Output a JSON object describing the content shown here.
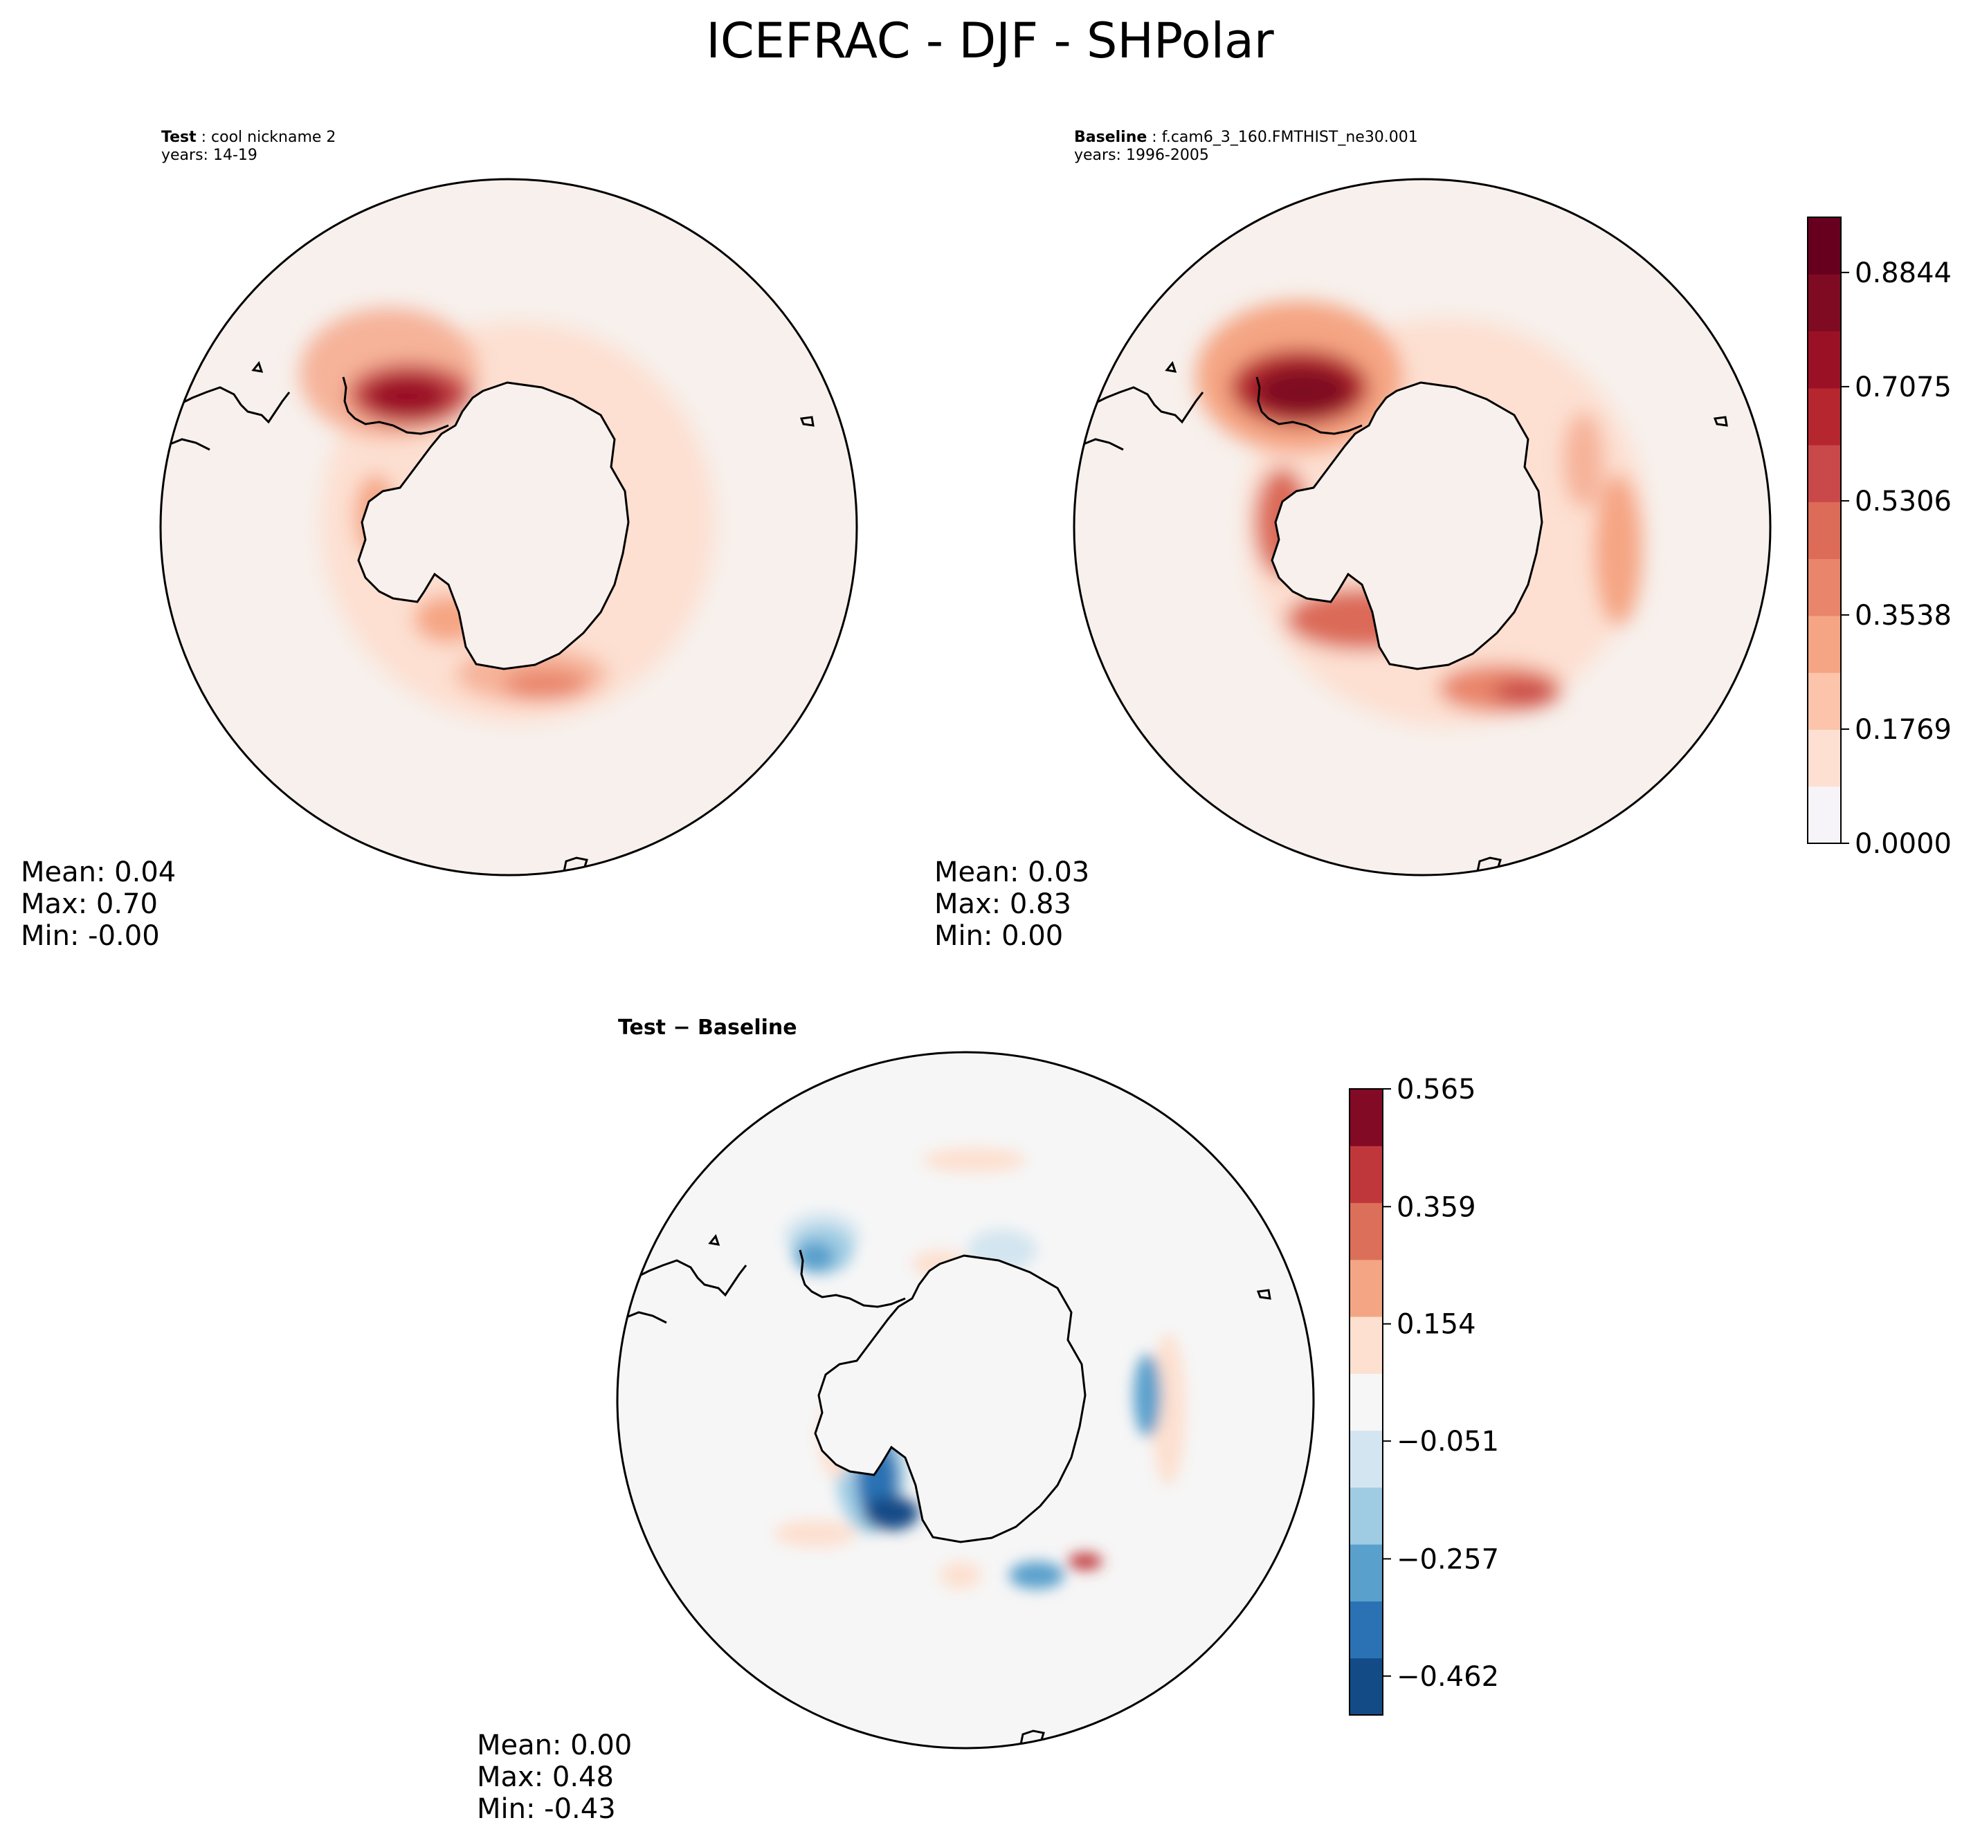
{
  "figure": {
    "title": "ICEFRAC - DJF - SHPolar"
  },
  "panels": {
    "test": {
      "label": "Test",
      "case": "cool nickname 2",
      "years": "years: 14-19",
      "stats": {
        "mean": "Mean:  0.04",
        "max": "Max:  0.70",
        "min": "Min: -0.00"
      }
    },
    "baseline": {
      "label": "Baseline",
      "case": "f.cam6_3_160.FMTHIST_ne30.001",
      "years": "years: 1996-2005",
      "stats": {
        "mean": "Mean:  0.03",
        "max": "Max:  0.83",
        "min": "Min:  0.00"
      }
    },
    "diff": {
      "title": "Test − Baseline",
      "stats": {
        "mean": "Mean:  0.00",
        "max": "Max:  0.48",
        "min": "Min: -0.43"
      }
    }
  },
  "colorbars": {
    "main": {
      "ticks": [
        "0.0000",
        "0.1769",
        "0.3538",
        "0.5306",
        "0.7075",
        "0.8844"
      ],
      "tick_values": [
        0.0,
        0.1769,
        0.3538,
        0.5306,
        0.7075,
        0.8844
      ],
      "range": [
        0.0,
        0.97
      ],
      "colors": [
        "#f7f4f9",
        "#fde0d2",
        "#fbc4ab",
        "#f5a583",
        "#e9856a",
        "#dc6b58",
        "#c9484a",
        "#b5262f",
        "#9a1126",
        "#7f0b22",
        "#67001f"
      ]
    },
    "diff": {
      "ticks": [
        "0.565",
        "0.359",
        "0.154",
        "−0.051",
        "−0.257",
        "−0.462"
      ],
      "tick_values": [
        0.565,
        0.359,
        0.154,
        -0.051,
        -0.257,
        -0.462
      ],
      "range": [
        -0.53,
        0.565
      ],
      "colors": [
        "#134b87",
        "#2a72b3",
        "#5aa0cc",
        "#9fcce3",
        "#d3e5f0",
        "#f6f6f6",
        "#fde0d0",
        "#f4a684",
        "#dc6f59",
        "#c0373b",
        "#820a24"
      ]
    }
  },
  "chart_data": [
    {
      "type": "heatmap",
      "title": "Test",
      "variable": "ICEFRAC",
      "season": "DJF",
      "region": "SHPolar",
      "mean": 0.04,
      "max": 0.7,
      "min": -0.0
    },
    {
      "type": "heatmap",
      "title": "Baseline",
      "variable": "ICEFRAC",
      "season": "DJF",
      "region": "SHPolar",
      "mean": 0.03,
      "max": 0.83,
      "min": 0.0
    },
    {
      "type": "heatmap",
      "title": "Test − Baseline",
      "variable": "ICEFRAC",
      "season": "DJF",
      "region": "SHPolar",
      "mean": 0.0,
      "max": 0.48,
      "min": -0.43
    }
  ]
}
